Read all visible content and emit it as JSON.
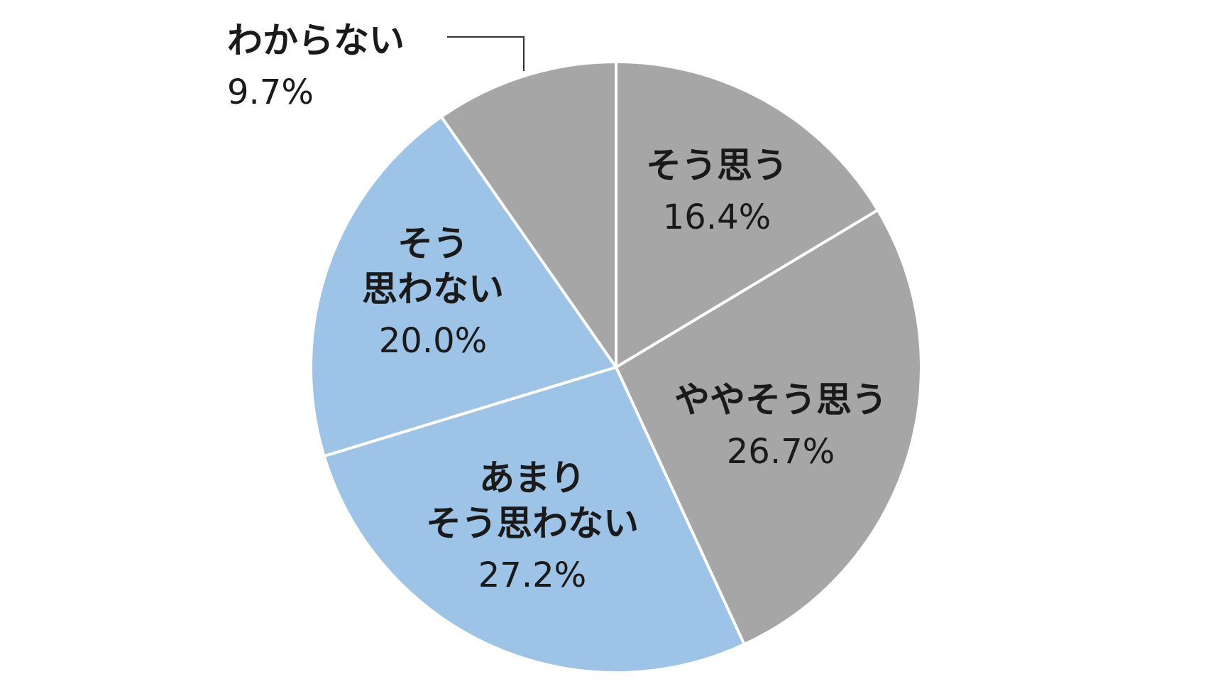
{
  "chart_data": {
    "type": "pie",
    "start_angle_deg": 0,
    "direction": "clockwise",
    "slices": [
      {
        "label_lines": [
          "そう思う"
        ],
        "value": 16.4,
        "value_label": "16.4%",
        "color": "#a6a6a6"
      },
      {
        "label_lines": [
          "ややそう思う"
        ],
        "value": 26.7,
        "value_label": "26.7%",
        "color": "#a6a6a6"
      },
      {
        "label_lines": [
          "あまり",
          "そう思わない"
        ],
        "value": 27.2,
        "value_label": "27.2%",
        "color": "#9dc3e6"
      },
      {
        "label_lines": [
          "そう",
          "思わない"
        ],
        "value": 20.0,
        "value_label": "20.0%",
        "color": "#9dc3e6"
      },
      {
        "label_lines": [
          "わからない"
        ],
        "value": 9.7,
        "value_label": "9.7%",
        "color": "#a6a6a6"
      }
    ],
    "separator_color": "#ffffff"
  }
}
